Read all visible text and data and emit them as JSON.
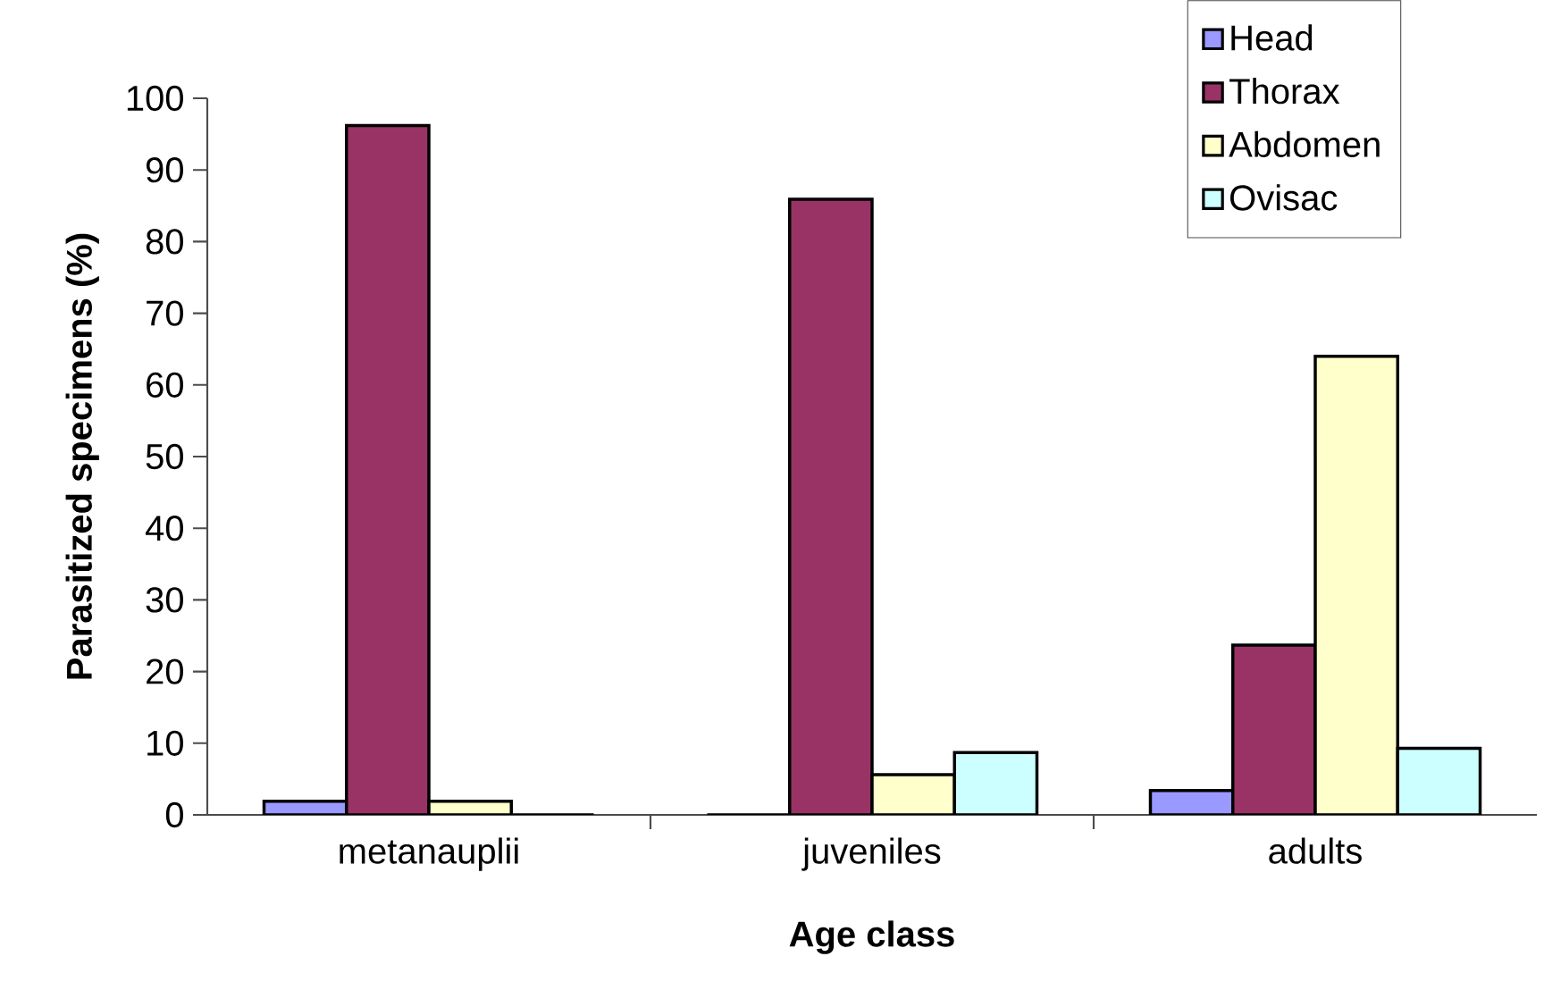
{
  "chart_data": {
    "type": "bar",
    "xlabel": "Age class",
    "ylabel": "Parasitized specimens (%)",
    "categories": [
      "metanauplii",
      "juveniles",
      "adults"
    ],
    "series": [
      {
        "name": "Head",
        "color": "#9999ff",
        "values": [
          1.9,
          0,
          3.4
        ]
      },
      {
        "name": "Thorax",
        "color": "#993366",
        "values": [
          96.2,
          85.9,
          23.7
        ]
      },
      {
        "name": "Abdomen",
        "color": "#ffffcc",
        "values": [
          1.9,
          5.6,
          64.0
        ]
      },
      {
        "name": "Ovisac",
        "color": "#ccffff",
        "values": [
          0,
          8.7,
          9.3
        ]
      }
    ],
    "ylim": [
      0,
      100
    ],
    "yticks": [
      0,
      10,
      20,
      30,
      40,
      50,
      60,
      70,
      80,
      90,
      100
    ],
    "grid": false,
    "legend": "top right"
  }
}
